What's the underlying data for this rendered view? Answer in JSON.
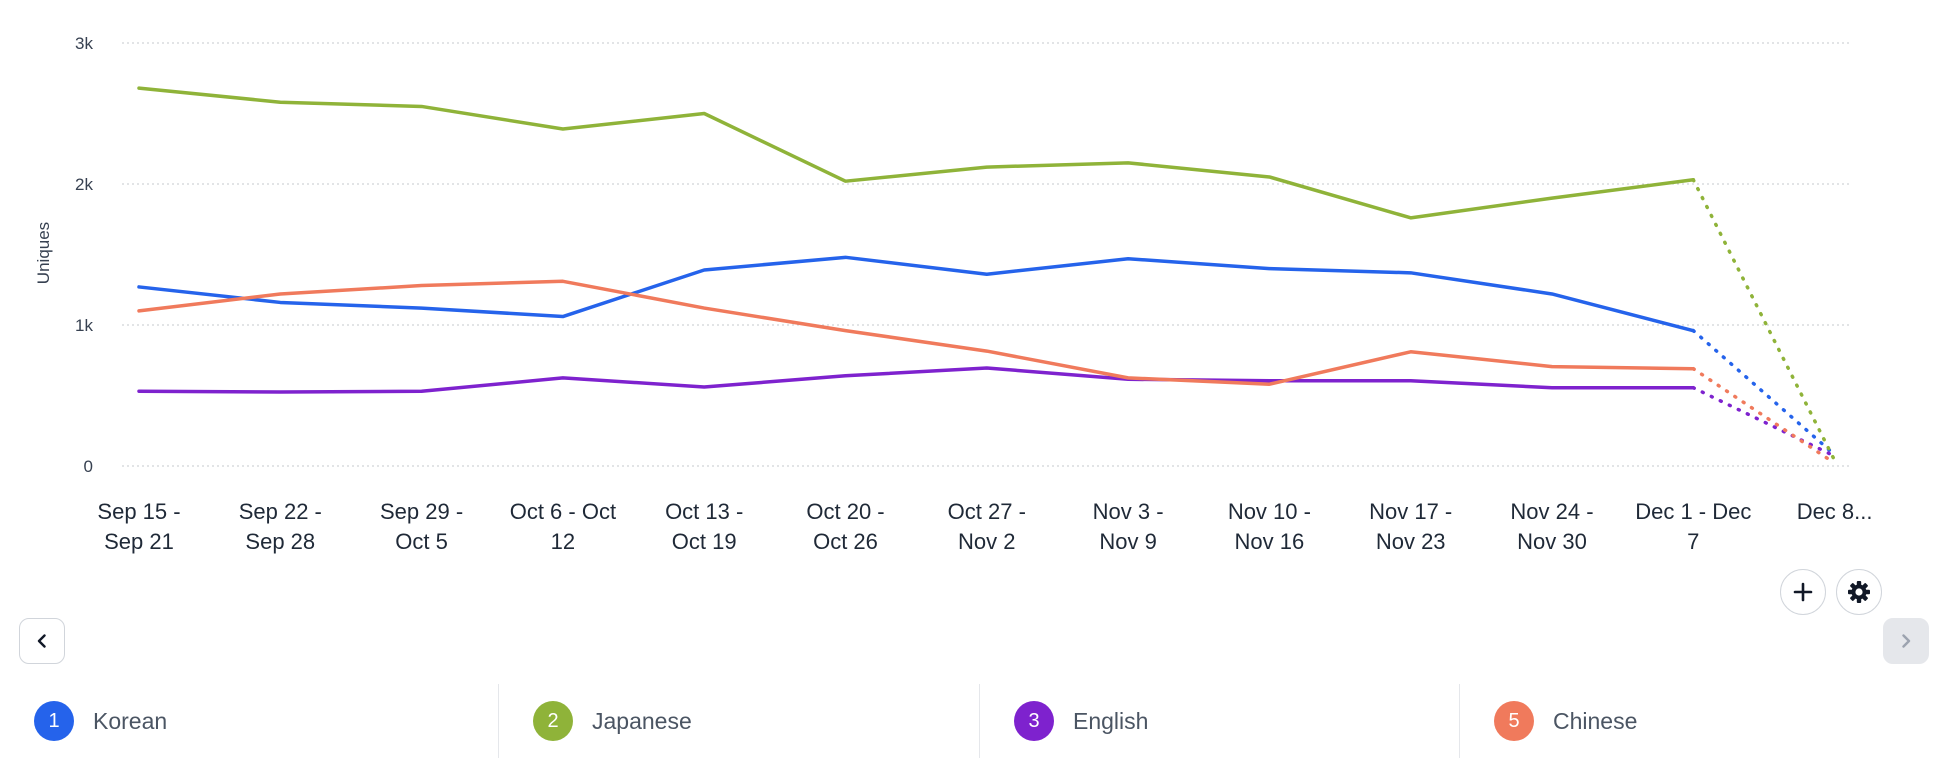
{
  "chart_data": {
    "type": "line",
    "title": "",
    "xlabel": "",
    "ylabel": "Uniques",
    "ylim": [
      0,
      3000
    ],
    "y_ticks": [
      {
        "value": 0,
        "label": "0"
      },
      {
        "value": 1000,
        "label": "1k"
      },
      {
        "value": 2000,
        "label": "2k"
      },
      {
        "value": 3000,
        "label": "3k"
      }
    ],
    "categories": [
      [
        "Sep 15 -",
        "Sep 21"
      ],
      [
        "Sep 22 -",
        "Sep 28"
      ],
      [
        "Sep 29 -",
        "Oct 5"
      ],
      [
        "Oct 6 - Oct",
        "12"
      ],
      [
        "Oct 13 -",
        "Oct 19"
      ],
      [
        "Oct 20 -",
        "Oct 26"
      ],
      [
        "Oct 27 -",
        "Nov 2"
      ],
      [
        "Nov 3 -",
        "Nov 9"
      ],
      [
        "Nov 10 -",
        "Nov 16"
      ],
      [
        "Nov 17 -",
        "Nov 23"
      ],
      [
        "Nov 24 -",
        "Nov 30"
      ],
      [
        "Dec 1 - Dec",
        "7"
      ],
      [
        "Dec 8..."
      ]
    ],
    "incomplete_from_index": 11,
    "grid": true,
    "legend_position": "bottom",
    "series": [
      {
        "name": "Korean",
        "color": "#2563eb",
        "values": [
          1270,
          1160,
          1120,
          1060,
          1390,
          1480,
          1360,
          1470,
          1400,
          1370,
          1220,
          960,
          80
        ]
      },
      {
        "name": "Japanese",
        "color": "#8fb339",
        "values": [
          2680,
          2580,
          2550,
          2390,
          2500,
          2020,
          2120,
          2150,
          2050,
          1760,
          1900,
          2030,
          40
        ]
      },
      {
        "name": "English",
        "color": "#7e22ce",
        "values": [
          530,
          525,
          530,
          625,
          560,
          640,
          695,
          615,
          605,
          605,
          555,
          555,
          70
        ]
      },
      {
        "name": "Chinese",
        "color": "#f07a5c",
        "values": [
          1100,
          1220,
          1280,
          1310,
          1120,
          960,
          815,
          625,
          580,
          810,
          705,
          690,
          20
        ]
      }
    ]
  },
  "legend": [
    {
      "number": "1",
      "label": "Korean",
      "color": "#2563eb"
    },
    {
      "number": "2",
      "label": "Japanese",
      "color": "#8fb339"
    },
    {
      "number": "3",
      "label": "English",
      "color": "#7e22ce"
    },
    {
      "number": "5",
      "label": "Chinese",
      "color": "#f07a5c"
    }
  ],
  "controls": {
    "add_icon": "plus-icon",
    "settings_icon": "gear-icon",
    "prev_icon": "chevron-left-icon",
    "next_icon": "chevron-right-icon"
  }
}
